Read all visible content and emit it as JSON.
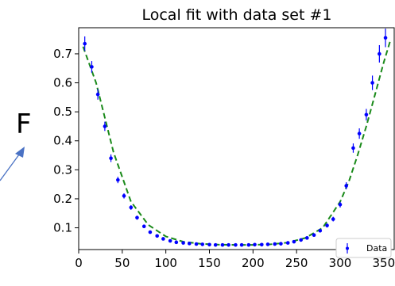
{
  "letter": "F",
  "chart_data": {
    "type": "scatter",
    "title": "Local fit with data set #1",
    "xlabel": "",
    "ylabel": "",
    "xlim": [
      0,
      362
    ],
    "ylim": [
      0.025,
      0.79
    ],
    "xticks": [
      0,
      50,
      100,
      150,
      200,
      250,
      300,
      350
    ],
    "yticks": [
      0.1,
      0.2,
      0.3,
      0.4,
      0.5,
      0.6,
      0.7
    ],
    "grid": false,
    "legend_position": "bottom-right",
    "series": [
      {
        "name": "Data",
        "kind": "errorbar",
        "color": "#0000ff",
        "x": [
          7,
          15,
          22,
          30,
          37,
          45,
          52,
          60,
          67,
          75,
          82,
          90,
          97,
          105,
          112,
          120,
          127,
          135,
          142,
          150,
          157,
          165,
          172,
          180,
          187,
          195,
          202,
          210,
          217,
          225,
          232,
          240,
          247,
          255,
          262,
          270,
          277,
          285,
          292,
          300,
          307,
          315,
          322,
          330,
          337,
          345,
          352
        ],
        "y": [
          0.735,
          0.655,
          0.56,
          0.45,
          0.34,
          0.265,
          0.21,
          0.17,
          0.135,
          0.105,
          0.085,
          0.072,
          0.062,
          0.055,
          0.05,
          0.048,
          0.046,
          0.044,
          0.043,
          0.042,
          0.041,
          0.041,
          0.041,
          0.041,
          0.041,
          0.041,
          0.042,
          0.042,
          0.043,
          0.044,
          0.045,
          0.048,
          0.052,
          0.058,
          0.065,
          0.075,
          0.09,
          0.108,
          0.13,
          0.18,
          0.245,
          0.375,
          0.425,
          0.49,
          0.6,
          0.7,
          0.755
        ],
        "err": [
          0.025,
          0.02,
          0.018,
          0.016,
          0.013,
          0.011,
          0.009,
          0.008,
          0.007,
          0.006,
          0.005,
          0.004,
          0.004,
          0.004,
          0.003,
          0.003,
          0.003,
          0.003,
          0.003,
          0.003,
          0.003,
          0.003,
          0.003,
          0.003,
          0.003,
          0.003,
          0.003,
          0.003,
          0.003,
          0.003,
          0.003,
          0.003,
          0.003,
          0.004,
          0.004,
          0.005,
          0.006,
          0.007,
          0.008,
          0.01,
          0.012,
          0.016,
          0.018,
          0.02,
          0.025,
          0.03,
          0.032
        ]
      },
      {
        "kind": "fit",
        "style": "dashed",
        "color": "#1a8a1a",
        "x": [
          5,
          20,
          40,
          60,
          80,
          100,
          120,
          140,
          160,
          180,
          200,
          220,
          240,
          260,
          280,
          300,
          310,
          320,
          330,
          340,
          350,
          358
        ],
        "y": [
          0.725,
          0.6,
          0.36,
          0.19,
          0.11,
          0.07,
          0.052,
          0.045,
          0.042,
          0.041,
          0.041,
          0.043,
          0.049,
          0.065,
          0.1,
          0.19,
          0.26,
          0.35,
          0.45,
          0.56,
          0.67,
          0.75
        ]
      }
    ]
  }
}
